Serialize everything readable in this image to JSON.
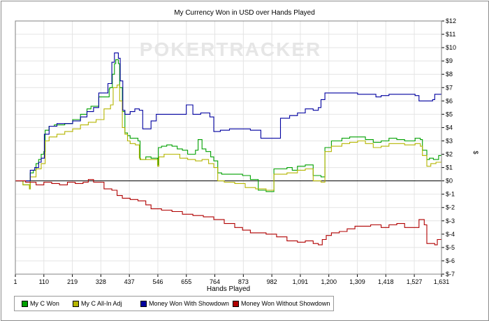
{
  "chart_data": {
    "type": "line",
    "title": "My Currency Won in USD over Hands Played",
    "xlabel": "Hands Played",
    "ylabel": "$",
    "watermark": "POKERTRACKER",
    "xlim": [
      1,
      1631
    ],
    "ylim": [
      -7,
      12
    ],
    "x_ticks": [
      1,
      110,
      219,
      328,
      437,
      546,
      655,
      764,
      873,
      982,
      1091,
      1200,
      1309,
      1418,
      1527,
      1631
    ],
    "x_tick_labels": [
      "1",
      "110",
      "219",
      "328",
      "437",
      "546",
      "655",
      "764",
      "873",
      "982",
      "1,091",
      "1,200",
      "1,309",
      "1,418",
      "1,527",
      "1,631"
    ],
    "y_ticks": [
      -7,
      -6,
      -5,
      -4,
      -3,
      -2,
      -1,
      0,
      1,
      2,
      3,
      4,
      5,
      6,
      7,
      8,
      9,
      10,
      11,
      12
    ],
    "y_tick_labels": [
      "$-7",
      "$-6",
      "$-5",
      "$-4",
      "$-3",
      "$-2",
      "$-1",
      "$0",
      "$1",
      "$2",
      "$3",
      "$4",
      "$5",
      "$6",
      "$7",
      "$8",
      "$9",
      "$10",
      "$11",
      "$12"
    ],
    "y_axis_side": "right",
    "grid": true,
    "legend": "bottom-left",
    "series": [
      {
        "name": "My C Won",
        "color": "#00a000",
        "points": [
          [
            1,
            0
          ],
          [
            30,
            -0.3
          ],
          [
            55,
            -0.6
          ],
          [
            58,
            0.6
          ],
          [
            70,
            0.8
          ],
          [
            80,
            1.3
          ],
          [
            90,
            1.6
          ],
          [
            100,
            2
          ],
          [
            110,
            2.2
          ],
          [
            115,
            3.8
          ],
          [
            130,
            4.1
          ],
          [
            150,
            4.2
          ],
          [
            190,
            4.3
          ],
          [
            220,
            4.6
          ],
          [
            250,
            5
          ],
          [
            275,
            5.4
          ],
          [
            290,
            5.6
          ],
          [
            310,
            5.6
          ],
          [
            320,
            6.3
          ],
          [
            360,
            6.9
          ],
          [
            362,
            7
          ],
          [
            372,
            8
          ],
          [
            380,
            8.8
          ],
          [
            385,
            9.1
          ],
          [
            395,
            8.8
          ],
          [
            400,
            7
          ],
          [
            410,
            5.2
          ],
          [
            420,
            3.6
          ],
          [
            430,
            3.4
          ],
          [
            440,
            3.2
          ],
          [
            460,
            3.2
          ],
          [
            470,
            3
          ],
          [
            478,
            1.6
          ],
          [
            500,
            1.8
          ],
          [
            520,
            1.7
          ],
          [
            545,
            1.2
          ],
          [
            548,
            2.5
          ],
          [
            560,
            2.6
          ],
          [
            580,
            2.7
          ],
          [
            600,
            2.6
          ],
          [
            620,
            2.4
          ],
          [
            640,
            2.3
          ],
          [
            660,
            2
          ],
          [
            690,
            2.3
          ],
          [
            700,
            3.1
          ],
          [
            715,
            2.4
          ],
          [
            730,
            2.2
          ],
          [
            748,
            1.8
          ],
          [
            760,
            1.5
          ],
          [
            775,
            0.6
          ],
          [
            790,
            0.5
          ],
          [
            830,
            0.5
          ],
          [
            870,
            0.4
          ],
          [
            900,
            0.1
          ],
          [
            930,
            -0.7
          ],
          [
            960,
            -0.8
          ],
          [
            990,
            0.9
          ],
          [
            1040,
            1
          ],
          [
            1060,
            0.8
          ],
          [
            1080,
            1.1
          ],
          [
            1110,
            1.2
          ],
          [
            1140,
            0.4
          ],
          [
            1170,
            0.3
          ],
          [
            1185,
            2.5
          ],
          [
            1210,
            3
          ],
          [
            1250,
            3.2
          ],
          [
            1280,
            3.3
          ],
          [
            1310,
            3.3
          ],
          [
            1340,
            3.1
          ],
          [
            1370,
            2.9
          ],
          [
            1400,
            3
          ],
          [
            1430,
            3.2
          ],
          [
            1460,
            3.1
          ],
          [
            1490,
            3
          ],
          [
            1530,
            3.2
          ],
          [
            1550,
            3.1
          ],
          [
            1558,
            2.3
          ],
          [
            1575,
            1.6
          ],
          [
            1585,
            1.7
          ],
          [
            1600,
            1.6
          ],
          [
            1620,
            1.9
          ],
          [
            1631,
            2
          ]
        ]
      },
      {
        "name": "My C All-In Adj",
        "color": "#b5b500",
        "points": [
          [
            1,
            0
          ],
          [
            30,
            -0.3
          ],
          [
            55,
            -0.6
          ],
          [
            58,
            0.3
          ],
          [
            80,
            0.9
          ],
          [
            100,
            1.3
          ],
          [
            115,
            3
          ],
          [
            130,
            3.3
          ],
          [
            160,
            3.5
          ],
          [
            190,
            3.7
          ],
          [
            220,
            3.9
          ],
          [
            250,
            4.2
          ],
          [
            280,
            4.4
          ],
          [
            310,
            4.6
          ],
          [
            340,
            5.4
          ],
          [
            365,
            5.7
          ],
          [
            375,
            7
          ],
          [
            390,
            7.2
          ],
          [
            400,
            6
          ],
          [
            410,
            4
          ],
          [
            420,
            3.5
          ],
          [
            430,
            3
          ],
          [
            440,
            2.8
          ],
          [
            460,
            2.7
          ],
          [
            475,
            1.7
          ],
          [
            480,
            1.6
          ],
          [
            510,
            1.6
          ],
          [
            545,
            1.1
          ],
          [
            550,
            1.8
          ],
          [
            570,
            2
          ],
          [
            600,
            2
          ],
          [
            630,
            1.7
          ],
          [
            660,
            1.6
          ],
          [
            690,
            1.5
          ],
          [
            715,
            1.6
          ],
          [
            740,
            1.3
          ],
          [
            760,
            1
          ],
          [
            775,
            0
          ],
          [
            800,
            -0.1
          ],
          [
            840,
            -0.2
          ],
          [
            880,
            -0.5
          ],
          [
            920,
            -0.6
          ],
          [
            960,
            -0.7
          ],
          [
            990,
            0.5
          ],
          [
            1040,
            0.6
          ],
          [
            1080,
            0.8
          ],
          [
            1110,
            0.9
          ],
          [
            1140,
            0
          ],
          [
            1170,
            -0.1
          ],
          [
            1185,
            2.2
          ],
          [
            1210,
            2.6
          ],
          [
            1250,
            2.8
          ],
          [
            1280,
            2.9
          ],
          [
            1310,
            3
          ],
          [
            1340,
            2.8
          ],
          [
            1370,
            2.5
          ],
          [
            1400,
            2.6
          ],
          [
            1430,
            2.8
          ],
          [
            1460,
            2.8
          ],
          [
            1490,
            2.7
          ],
          [
            1530,
            2.8
          ],
          [
            1550,
            2.6
          ],
          [
            1558,
            1.9
          ],
          [
            1575,
            1.1
          ],
          [
            1590,
            1.3
          ],
          [
            1610,
            1.4
          ],
          [
            1631,
            1.7
          ]
        ]
      },
      {
        "name": "Money Won With Showdown",
        "color": "#0000a0",
        "points": [
          [
            1,
            0
          ],
          [
            50,
            0
          ],
          [
            58,
            0.8
          ],
          [
            75,
            1
          ],
          [
            90,
            1.4
          ],
          [
            100,
            1.7
          ],
          [
            112,
            3.5
          ],
          [
            130,
            4.1
          ],
          [
            160,
            4.3
          ],
          [
            190,
            4.3
          ],
          [
            220,
            4.5
          ],
          [
            250,
            4.8
          ],
          [
            275,
            5.2
          ],
          [
            300,
            5.5
          ],
          [
            320,
            6.6
          ],
          [
            355,
            7.3
          ],
          [
            370,
            8.9
          ],
          [
            380,
            9.6
          ],
          [
            395,
            9.2
          ],
          [
            402,
            7.5
          ],
          [
            412,
            5.3
          ],
          [
            420,
            5
          ],
          [
            440,
            5.2
          ],
          [
            458,
            5.4
          ],
          [
            475,
            5.3
          ],
          [
            488,
            3.9
          ],
          [
            510,
            3.9
          ],
          [
            520,
            4.5
          ],
          [
            540,
            5
          ],
          [
            580,
            5
          ],
          [
            620,
            5
          ],
          [
            655,
            5.7
          ],
          [
            680,
            5
          ],
          [
            710,
            5.1
          ],
          [
            745,
            4.8
          ],
          [
            760,
            3.7
          ],
          [
            785,
            3.8
          ],
          [
            820,
            3.9
          ],
          [
            860,
            3.9
          ],
          [
            900,
            3.8
          ],
          [
            940,
            3.2
          ],
          [
            980,
            3.2
          ],
          [
            1015,
            4.7
          ],
          [
            1050,
            4.9
          ],
          [
            1080,
            5.1
          ],
          [
            1110,
            5.4
          ],
          [
            1140,
            5.3
          ],
          [
            1160,
            5.5
          ],
          [
            1170,
            6.1
          ],
          [
            1185,
            6.6
          ],
          [
            1230,
            6.6
          ],
          [
            1270,
            6.6
          ],
          [
            1310,
            6.5
          ],
          [
            1350,
            6.5
          ],
          [
            1380,
            6.3
          ],
          [
            1400,
            6.4
          ],
          [
            1430,
            6.5
          ],
          [
            1490,
            6.5
          ],
          [
            1530,
            6.4
          ],
          [
            1545,
            6
          ],
          [
            1580,
            6
          ],
          [
            1597,
            6.1
          ],
          [
            1605,
            6.5
          ],
          [
            1631,
            6.9
          ]
        ]
      },
      {
        "name": "Money Won Without Showdown",
        "color": "#b00000",
        "points": [
          [
            1,
            0
          ],
          [
            40,
            -0.1
          ],
          [
            80,
            -0.3
          ],
          [
            110,
            -0.1
          ],
          [
            140,
            -0.2
          ],
          [
            170,
            -0.3
          ],
          [
            200,
            -0.1
          ],
          [
            230,
            -0.2
          ],
          [
            260,
            -0.1
          ],
          [
            280,
            0.1
          ],
          [
            300,
            -0.1
          ],
          [
            340,
            -0.6
          ],
          [
            370,
            -0.7
          ],
          [
            390,
            -1.1
          ],
          [
            410,
            -1.3
          ],
          [
            440,
            -1.4
          ],
          [
            470,
            -1.5
          ],
          [
            500,
            -1.8
          ],
          [
            520,
            -2.1
          ],
          [
            560,
            -2.2
          ],
          [
            600,
            -2.3
          ],
          [
            640,
            -2.5
          ],
          [
            680,
            -2.6
          ],
          [
            720,
            -2.7
          ],
          [
            760,
            -2.9
          ],
          [
            800,
            -3.2
          ],
          [
            840,
            -3.5
          ],
          [
            870,
            -3.7
          ],
          [
            900,
            -3.9
          ],
          [
            930,
            -3.9
          ],
          [
            960,
            -4
          ],
          [
            990,
            -4
          ],
          [
            1000,
            -4.2
          ],
          [
            1040,
            -4.5
          ],
          [
            1080,
            -4.6
          ],
          [
            1110,
            -4.5
          ],
          [
            1140,
            -4.7
          ],
          [
            1160,
            -4.8
          ],
          [
            1175,
            -4.4
          ],
          [
            1190,
            -4.1
          ],
          [
            1210,
            -3.9
          ],
          [
            1240,
            -3.8
          ],
          [
            1270,
            -3.6
          ],
          [
            1300,
            -3.4
          ],
          [
            1330,
            -3.4
          ],
          [
            1360,
            -3.3
          ],
          [
            1400,
            -3.5
          ],
          [
            1430,
            -3.3
          ],
          [
            1460,
            -3.2
          ],
          [
            1490,
            -3.5
          ],
          [
            1520,
            -3.5
          ],
          [
            1545,
            -2.9
          ],
          [
            1565,
            -3.3
          ],
          [
            1575,
            -4.7
          ],
          [
            1590,
            -4.7
          ],
          [
            1605,
            -4.8
          ],
          [
            1615,
            -4.4
          ],
          [
            1631,
            -4.3
          ]
        ]
      }
    ]
  }
}
